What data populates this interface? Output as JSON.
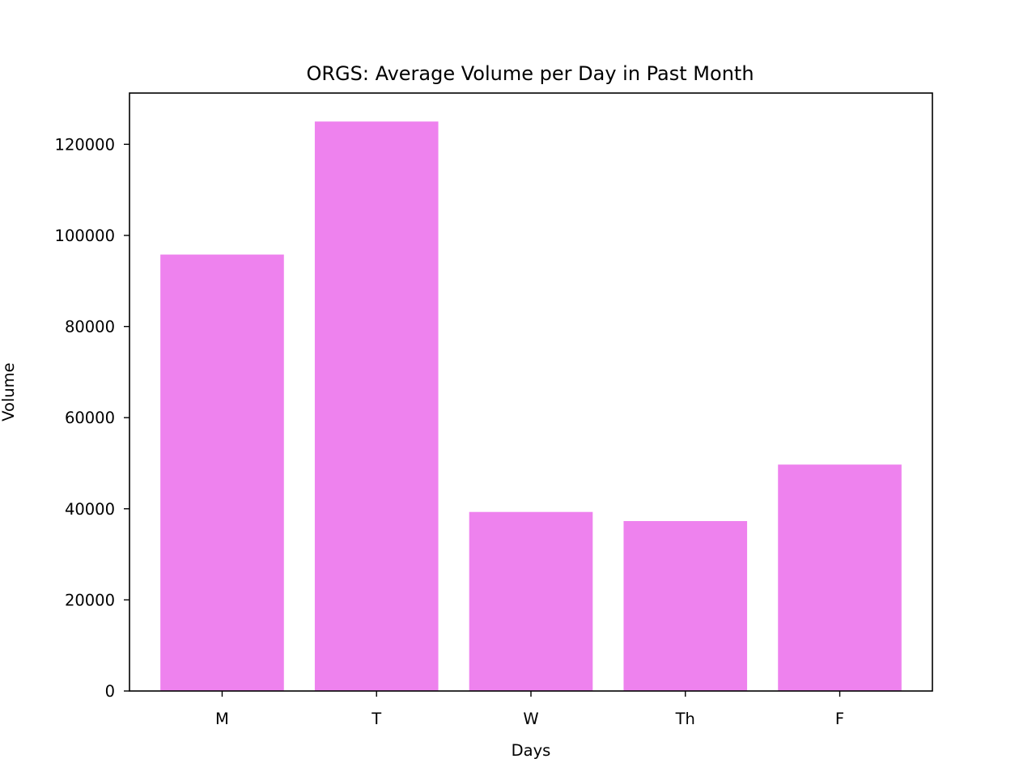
{
  "chart_data": {
    "type": "bar",
    "title": "ORGS: Average Volume per Day in Past Month",
    "xlabel": "Days",
    "ylabel": "Volume",
    "categories": [
      "M",
      "T",
      "W",
      "Th",
      "F"
    ],
    "values": [
      95800,
      125000,
      39300,
      37300,
      49700
    ],
    "ylim": [
      0,
      131250
    ],
    "yticks": [
      0,
      20000,
      40000,
      60000,
      80000,
      100000,
      120000
    ],
    "ytick_labels": [
      "0",
      "20000",
      "40000",
      "60000",
      "80000",
      "100000",
      "120000"
    ],
    "bar_color": "#ee82ee",
    "grid": false,
    "legend": "none"
  }
}
